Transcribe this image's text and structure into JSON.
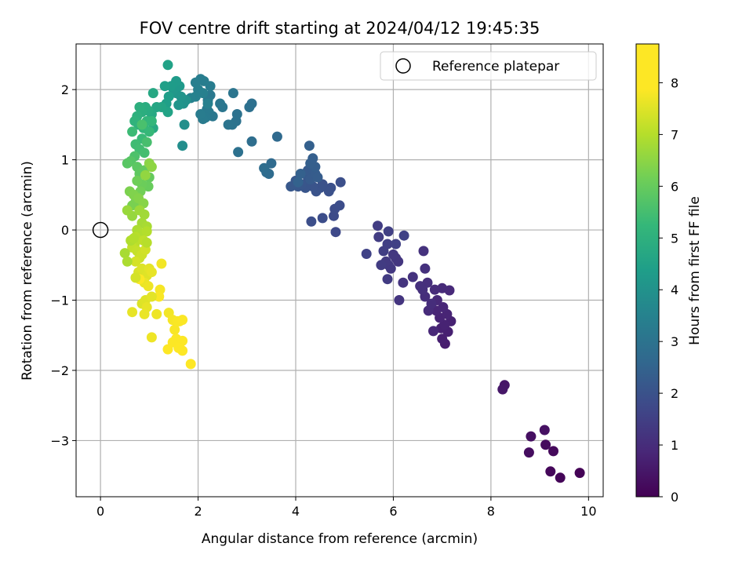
{
  "chart_data": {
    "type": "scatter",
    "title": "FOV centre drift starting at 2024/04/12 19:45:35",
    "xlabel": "Angular distance from reference (arcmin)",
    "ylabel": "Rotation from reference (arcmin)",
    "xlim": [
      -0.5,
      10.3
    ],
    "ylim": [
      -3.8,
      2.65
    ],
    "xticks": [
      0,
      2,
      4,
      6,
      8,
      10
    ],
    "yticks": [
      -3,
      -2,
      -1,
      0,
      1,
      2
    ],
    "grid": true,
    "legend": {
      "placement": "top-right",
      "entries": [
        "Reference platepar"
      ]
    },
    "colorbar": {
      "label": "Hours from first FF file",
      "range": [
        0,
        8.75
      ],
      "ticks": [
        0,
        1,
        2,
        3,
        4,
        5,
        6,
        7,
        8
      ],
      "colormap": "viridis"
    },
    "reference_point": {
      "x": 0,
      "y": 0
    },
    "series": [
      {
        "fields": [
          "x",
          "y",
          "hours"
        ],
        "points": [
          [
            9.82,
            -3.46,
            0.05
          ],
          [
            9.42,
            -3.53,
            0.1
          ],
          [
            9.22,
            -3.44,
            0.15
          ],
          [
            9.28,
            -3.15,
            0.2
          ],
          [
            9.12,
            -3.06,
            0.25
          ],
          [
            8.78,
            -3.17,
            0.3
          ],
          [
            8.82,
            -2.94,
            0.35
          ],
          [
            9.1,
            -2.85,
            0.4
          ],
          [
            8.28,
            -2.21,
            0.5
          ],
          [
            8.24,
            -2.27,
            0.55
          ],
          [
            7.06,
            -1.62,
            0.7
          ],
          [
            7.0,
            -1.55,
            0.75
          ],
          [
            7.12,
            -1.45,
            0.78
          ],
          [
            6.98,
            -1.4,
            0.8
          ],
          [
            7.18,
            -1.3,
            0.82
          ],
          [
            7.05,
            -1.35,
            0.85
          ],
          [
            6.95,
            -1.25,
            0.88
          ],
          [
            7.1,
            -1.2,
            0.9
          ],
          [
            6.88,
            -1.15,
            0.92
          ],
          [
            7.02,
            -1.1,
            0.95
          ],
          [
            6.82,
            -1.44,
            0.98
          ],
          [
            6.9,
            -1.0,
            1.0
          ],
          [
            7.15,
            -0.86,
            1.02
          ],
          [
            7.0,
            -0.83,
            1.05
          ],
          [
            6.85,
            -0.85,
            1.08
          ],
          [
            6.72,
            -1.15,
            1.1
          ],
          [
            6.78,
            -1.05,
            1.12
          ],
          [
            6.65,
            -0.95,
            1.15
          ],
          [
            6.7,
            -0.75,
            1.18
          ],
          [
            6.6,
            -0.85,
            1.2
          ],
          [
            6.55,
            -0.8,
            1.22
          ],
          [
            6.65,
            -0.55,
            1.25
          ],
          [
            6.62,
            -0.3,
            1.28
          ],
          [
            6.4,
            -0.67,
            1.3
          ],
          [
            6.2,
            -0.75,
            1.33
          ],
          [
            6.12,
            -1.0,
            1.35
          ],
          [
            6.1,
            -0.45,
            1.38
          ],
          [
            6.05,
            -0.4,
            1.4
          ],
          [
            6.0,
            -0.35,
            1.43
          ],
          [
            5.95,
            -0.55,
            1.45
          ],
          [
            5.9,
            -0.5,
            1.48
          ],
          [
            5.85,
            -0.45,
            1.5
          ],
          [
            5.88,
            -0.7,
            1.52
          ],
          [
            5.75,
            -0.5,
            1.55
          ],
          [
            5.7,
            -0.1,
            1.58
          ],
          [
            5.68,
            0.06,
            1.6
          ],
          [
            5.8,
            -0.3,
            1.62
          ],
          [
            5.88,
            -0.2,
            1.65
          ],
          [
            5.9,
            -0.02,
            1.68
          ],
          [
            6.05,
            -0.2,
            1.7
          ],
          [
            6.22,
            -0.08,
            1.72
          ],
          [
            5.45,
            -0.34,
            1.75
          ],
          [
            4.82,
            -0.03,
            1.95
          ],
          [
            4.78,
            0.2,
            2.0
          ],
          [
            4.8,
            0.3,
            2.03
          ],
          [
            4.9,
            0.35,
            2.06
          ],
          [
            4.55,
            0.17,
            2.08
          ],
          [
            4.32,
            0.12,
            2.1
          ],
          [
            4.92,
            0.68,
            2.13
          ],
          [
            4.72,
            0.6,
            2.16
          ],
          [
            4.68,
            0.55,
            2.18
          ],
          [
            4.55,
            0.65,
            2.2
          ],
          [
            4.5,
            0.6,
            2.22
          ],
          [
            4.42,
            0.55,
            2.25
          ],
          [
            4.35,
            0.62,
            2.28
          ],
          [
            4.25,
            0.7,
            2.3
          ],
          [
            4.2,
            0.6,
            2.33
          ],
          [
            4.12,
            0.65,
            2.35
          ],
          [
            4.05,
            0.62,
            2.38
          ],
          [
            4.0,
            0.7,
            2.4
          ],
          [
            3.9,
            0.62,
            2.43
          ],
          [
            4.18,
            0.8,
            2.45
          ],
          [
            4.25,
            0.85,
            2.48
          ],
          [
            4.3,
            0.72,
            2.5
          ],
          [
            4.36,
            0.85,
            2.52
          ],
          [
            4.4,
            0.8,
            2.55
          ],
          [
            4.45,
            0.75,
            2.58
          ],
          [
            4.4,
            0.9,
            2.6
          ],
          [
            4.3,
            0.95,
            2.62
          ],
          [
            4.35,
            1.02,
            2.65
          ],
          [
            4.28,
            1.2,
            2.68
          ],
          [
            4.1,
            0.8,
            2.7
          ],
          [
            4.05,
            0.68,
            2.73
          ],
          [
            3.62,
            1.33,
            3.0
          ],
          [
            3.5,
            0.95,
            3.03
          ],
          [
            3.4,
            0.82,
            3.06
          ],
          [
            3.45,
            0.8,
            3.08
          ],
          [
            3.35,
            0.88,
            3.1
          ],
          [
            3.1,
            1.26,
            3.13
          ],
          [
            3.1,
            1.8,
            3.2
          ],
          [
            3.05,
            1.75,
            3.23
          ],
          [
            2.82,
            1.11,
            3.25
          ],
          [
            2.78,
            1.55,
            3.28
          ],
          [
            2.8,
            1.65,
            3.3
          ],
          [
            2.7,
            1.5,
            3.33
          ],
          [
            2.62,
            1.5,
            3.36
          ],
          [
            2.72,
            1.95,
            3.4
          ],
          [
            2.5,
            1.75,
            3.43
          ],
          [
            2.45,
            1.8,
            3.46
          ],
          [
            2.3,
            1.62,
            3.48
          ],
          [
            2.22,
            1.68,
            3.5
          ],
          [
            2.25,
            1.92,
            3.52
          ],
          [
            2.2,
            1.85,
            3.55
          ],
          [
            2.18,
            1.72,
            3.58
          ],
          [
            2.15,
            1.6,
            3.6
          ],
          [
            2.1,
            1.58,
            3.62
          ],
          [
            2.05,
            1.65,
            3.65
          ],
          [
            2.25,
            2.05,
            3.68
          ],
          [
            2.12,
            2.12,
            3.7
          ],
          [
            2.05,
            2.15,
            3.72
          ],
          [
            1.95,
            2.1,
            3.75
          ],
          [
            2.0,
            2.0,
            3.78
          ],
          [
            2.1,
            1.95,
            3.8
          ],
          [
            2.2,
            1.8,
            3.82
          ],
          [
            1.95,
            1.9,
            3.85
          ],
          [
            1.85,
            1.88,
            3.88
          ],
          [
            1.68,
            1.2,
            4.3
          ],
          [
            1.72,
            1.5,
            4.35
          ],
          [
            1.75,
            1.85,
            4.4
          ],
          [
            1.7,
            1.8,
            4.45
          ],
          [
            1.65,
            1.9,
            4.5
          ],
          [
            1.6,
            1.78,
            4.55
          ],
          [
            1.55,
            1.95,
            4.6
          ],
          [
            1.5,
            2.0,
            4.65
          ],
          [
            1.62,
            2.05,
            4.7
          ],
          [
            1.55,
            2.12,
            4.75
          ],
          [
            1.45,
            2.05,
            4.8
          ],
          [
            1.4,
            1.9,
            4.85
          ],
          [
            1.35,
            1.8,
            4.9
          ],
          [
            1.32,
            2.05,
            4.95
          ],
          [
            1.38,
            2.35,
            5.0
          ],
          [
            1.38,
            1.68,
            5.05
          ],
          [
            1.25,
            1.75,
            5.1
          ],
          [
            1.15,
            1.75,
            5.15
          ],
          [
            1.08,
            1.95,
            5.2
          ],
          [
            1.05,
            1.65,
            5.25
          ],
          [
            1.08,
            1.45,
            5.3
          ],
          [
            0.98,
            1.7,
            5.35
          ],
          [
            0.92,
            1.75,
            5.4
          ],
          [
            0.85,
            1.68,
            5.45
          ],
          [
            0.8,
            1.75,
            5.5
          ],
          [
            0.75,
            1.62,
            5.55
          ],
          [
            0.78,
            1.5,
            5.6
          ],
          [
            0.7,
            1.55,
            5.65
          ],
          [
            0.88,
            1.45,
            5.7
          ],
          [
            0.95,
            1.55,
            5.75
          ],
          [
            1.05,
            1.55,
            5.8
          ],
          [
            1.0,
            1.4,
            5.85
          ],
          [
            0.85,
            1.3,
            5.9
          ],
          [
            0.65,
            1.4,
            5.95
          ],
          [
            0.72,
            1.22,
            6.0
          ],
          [
            0.8,
            1.15,
            6.05
          ],
          [
            0.9,
            1.1,
            6.1
          ],
          [
            0.95,
            1.25,
            6.15
          ],
          [
            0.85,
            1.5,
            6.2
          ],
          [
            0.7,
            1.05,
            6.25
          ],
          [
            0.62,
            0.98,
            6.4
          ],
          [
            0.55,
            0.95,
            6.45
          ],
          [
            0.75,
            0.9,
            6.5
          ],
          [
            0.8,
            0.8,
            6.55
          ],
          [
            0.9,
            0.85,
            6.6
          ],
          [
            1.0,
            0.75,
            6.65
          ],
          [
            0.98,
            0.62,
            6.7
          ],
          [
            0.85,
            0.65,
            6.75
          ],
          [
            0.75,
            0.7,
            6.8
          ],
          [
            0.82,
            0.55,
            6.85
          ],
          [
            0.72,
            0.4,
            6.9
          ],
          [
            0.65,
            0.35,
            6.95
          ],
          [
            0.6,
            0.55,
            7.0
          ],
          [
            0.68,
            0.5,
            7.05
          ],
          [
            0.78,
            0.45,
            7.1
          ],
          [
            0.88,
            0.38,
            7.15
          ],
          [
            1.0,
            0.95,
            7.2
          ],
          [
            1.05,
            0.9,
            7.25
          ],
          [
            0.92,
            0.78,
            7.3
          ],
          [
            0.65,
            0.2,
            7.35
          ],
          [
            0.55,
            0.28,
            7.4
          ],
          [
            0.8,
            0.28,
            7.45
          ],
          [
            0.9,
            0.22,
            7.5
          ],
          [
            0.85,
            0.1,
            7.55
          ],
          [
            0.95,
            0.05,
            7.6
          ],
          [
            0.75,
            0.0,
            7.65
          ],
          [
            0.82,
            -0.05,
            7.7
          ],
          [
            0.95,
            -0.02,
            7.75
          ],
          [
            0.72,
            -0.1,
            7.8
          ],
          [
            0.7,
            -0.2,
            7.85
          ],
          [
            0.88,
            -0.15,
            7.9
          ],
          [
            0.65,
            -0.25,
            7.95
          ],
          [
            0.75,
            -0.3,
            8.0
          ],
          [
            0.8,
            -0.4,
            8.05
          ],
          [
            0.85,
            -0.35,
            8.1
          ],
          [
            0.92,
            -0.28,
            8.15
          ],
          [
            0.72,
            -0.45,
            8.2
          ],
          [
            0.78,
            -0.6,
            8.25
          ],
          [
            0.85,
            -0.55,
            8.3
          ],
          [
            0.95,
            -0.65,
            8.35
          ],
          [
            1.0,
            -0.55,
            8.4
          ],
          [
            1.05,
            -0.6,
            8.45
          ],
          [
            0.9,
            -0.75,
            8.5
          ],
          [
            0.98,
            -0.8,
            8.55
          ],
          [
            1.25,
            -0.48,
            8.6
          ],
          [
            1.22,
            -0.85,
            8.65
          ],
          [
            1.2,
            -0.95,
            8.7
          ],
          [
            0.8,
            -0.7,
            8.72
          ],
          [
            0.5,
            -0.33,
            7.6
          ],
          [
            0.55,
            -0.45,
            7.65
          ],
          [
            0.62,
            -0.15,
            7.7
          ],
          [
            0.68,
            -0.12,
            7.75
          ],
          [
            0.95,
            -0.18,
            7.8
          ],
          [
            0.72,
            -0.68,
            8.2
          ],
          [
            0.85,
            -1.05,
            8.3
          ],
          [
            0.92,
            -1.0,
            8.35
          ],
          [
            1.05,
            -0.95,
            8.4
          ],
          [
            0.95,
            -1.1,
            8.45
          ],
          [
            0.9,
            -1.2,
            8.5
          ],
          [
            1.15,
            -1.2,
            8.55
          ],
          [
            0.65,
            -1.17,
            8.45
          ],
          [
            1.05,
            -1.53,
            8.55
          ],
          [
            1.4,
            -1.18,
            8.6
          ],
          [
            1.48,
            -1.28,
            8.65
          ],
          [
            1.52,
            -1.42,
            8.68
          ],
          [
            1.58,
            -1.3,
            8.7
          ],
          [
            1.62,
            -1.3,
            8.7
          ],
          [
            1.68,
            -1.28,
            8.72
          ],
          [
            1.55,
            -1.55,
            8.72
          ],
          [
            1.48,
            -1.6,
            8.73
          ],
          [
            1.62,
            -1.62,
            8.74
          ],
          [
            1.68,
            -1.58,
            8.74
          ],
          [
            1.6,
            -1.68,
            8.75
          ],
          [
            1.68,
            -1.72,
            8.75
          ],
          [
            1.38,
            -1.7,
            8.75
          ],
          [
            1.85,
            -1.91,
            8.75
          ]
        ]
      }
    ]
  }
}
